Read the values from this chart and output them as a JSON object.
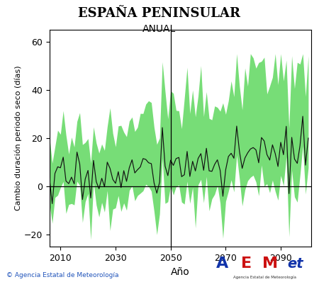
{
  "title": "ESPAÑA PENINSULAR",
  "subtitle": "ANUAL",
  "xlabel": "Año",
  "ylabel": "Cambio duración periodo seco (días)",
  "xlim": [
    2006,
    2101
  ],
  "ylim": [
    -25,
    65
  ],
  "yticks": [
    -20,
    0,
    20,
    40,
    60
  ],
  "xticks": [
    2010,
    2030,
    2050,
    2070,
    2090
  ],
  "vline_x": 2050,
  "hline_y": 0,
  "fill_color": "#77DD77",
  "line_color": "#111111",
  "background_color": "#ffffff",
  "footer_text": "© Agencia Estatal de Meteorología",
  "seed": 17,
  "year_start": 2006,
  "year_end": 2100
}
